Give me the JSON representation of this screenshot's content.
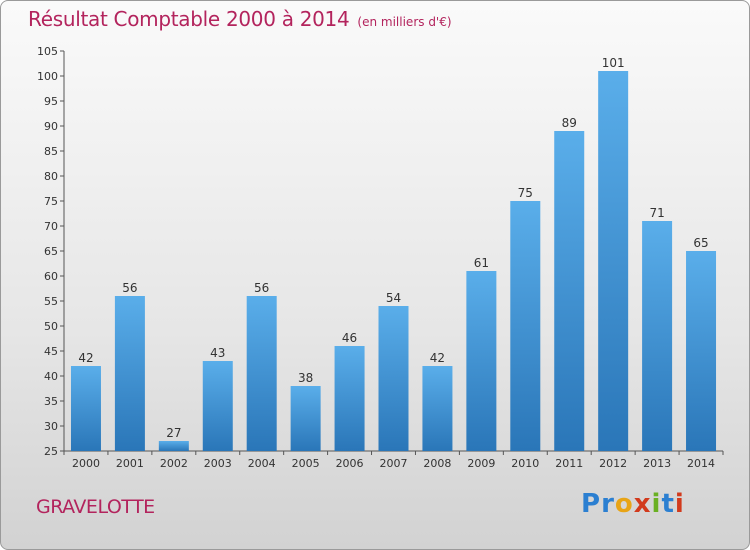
{
  "title": "Résultat Comptable 2000 à 2014",
  "unit": "(en milliers d'€)",
  "commune": "GRAVELOTTE",
  "logo": {
    "text": "Proxiti",
    "letter_colors": [
      "#2b7fd1",
      "#2b7fd1",
      "#e8a416",
      "#d23a1c",
      "#6ab023",
      "#2b7fd1",
      "#d23a1c"
    ]
  },
  "colors": {
    "bar_top": "#5aaeea",
    "bar_bottom": "#2a76b8",
    "accent": "#b3245d"
  },
  "chart_data": {
    "type": "bar",
    "categories": [
      "2000",
      "2001",
      "2002",
      "2003",
      "2004",
      "2005",
      "2006",
      "2007",
      "2008",
      "2009",
      "2010",
      "2011",
      "2012",
      "2013",
      "2014"
    ],
    "values": [
      42,
      56,
      27,
      43,
      56,
      38,
      46,
      54,
      42,
      61,
      75,
      89,
      101,
      71,
      65
    ],
    "title": "Résultat Comptable 2000 à 2014",
    "xlabel": "",
    "ylabel": "",
    "ylim": [
      25,
      105
    ],
    "ytick_step": 5,
    "grid": false
  }
}
